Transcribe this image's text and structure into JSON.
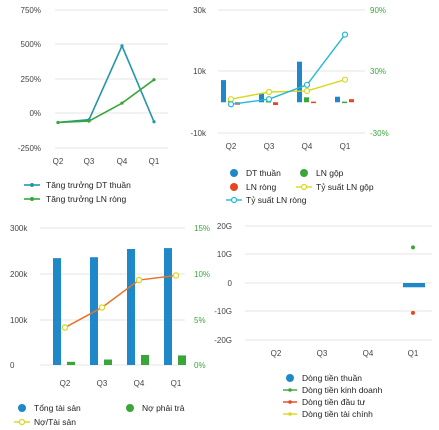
{
  "colors": {
    "blue": "#1e88c8",
    "teal": "#2596a8",
    "green": "#3aa63a",
    "red": "#e8451e",
    "yellow": "#d8d820",
    "orange": "#e8732a",
    "cyan": "#22b8d8",
    "grid": "#e6e6e6",
    "tick": "#444444"
  },
  "chart_data": [
    {
      "id": "c1",
      "type": "line",
      "categories": [
        "Q2",
        "Q3",
        "Q4",
        "Q1"
      ],
      "ylim": [
        -250,
        750
      ],
      "yticks": [
        "750%",
        "500%",
        "250%",
        "0%",
        "-250%"
      ],
      "series": [
        {
          "name": "Tăng trưởng DT thuần",
          "color": "teal",
          "values": [
            -65,
            -45,
            490,
            -60
          ]
        },
        {
          "name": "Tăng trưởng LN ròng",
          "color": "green",
          "values": [
            -65,
            -55,
            75,
            245
          ]
        }
      ]
    },
    {
      "id": "c2",
      "type": "bar",
      "categories": [
        "Q2",
        "Q3",
        "Q4",
        "Q1"
      ],
      "ylim": [
        -10000,
        30000
      ],
      "yticks": [
        "30k",
        "10k",
        "-10k"
      ],
      "y2lim": [
        -30,
        90
      ],
      "y2ticks": [
        "90%",
        "30%",
        "-30%"
      ],
      "series": [
        {
          "name": "DT thuần",
          "color": "blue",
          "axis": "left",
          "values": [
            7200,
            2800,
            13200,
            1800
          ]
        },
        {
          "name": "LN gộp",
          "color": "green",
          "axis": "left",
          "values": [
            500,
            400,
            1600,
            200
          ]
        },
        {
          "name": "LN ròng",
          "color": "red",
          "axis": "left",
          "values": [
            -800,
            -900,
            200,
            1000
          ]
        },
        {
          "name": "Tỷ suất LN gộp",
          "color": "yellow",
          "axis": "right",
          "values": [
            3,
            10,
            11,
            22
          ]
        },
        {
          "name": "Tỷ suất LN ròng",
          "color": "cyan",
          "axis": "right",
          "values": [
            -2,
            3,
            17,
            66
          ]
        }
      ]
    },
    {
      "id": "c3",
      "type": "bar",
      "categories": [
        "Q2",
        "Q3",
        "Q4",
        "Q1"
      ],
      "ylim": [
        0,
        300000
      ],
      "yticks": [
        "300k",
        "200k",
        "100k",
        "0"
      ],
      "y2lim": [
        0,
        15
      ],
      "y2ticks": [
        "15%",
        "10%",
        "5%",
        "0%"
      ],
      "series": [
        {
          "name": "Tổng tài sản",
          "color": "blue",
          "axis": "left",
          "values": [
            234000,
            236000,
            254000,
            256000
          ]
        },
        {
          "name": "Nợ phải trả",
          "color": "green",
          "axis": "left",
          "values": [
            7000,
            12000,
            22000,
            21000
          ]
        },
        {
          "name": "Nợ/Tài sản",
          "color": "orange",
          "axis": "right",
          "values": [
            4.1,
            6.3,
            9.3,
            9.8
          ]
        }
      ]
    },
    {
      "id": "c4",
      "type": "bar",
      "categories": [
        "Q2",
        "Q3",
        "Q4",
        "Q1"
      ],
      "ylim": [
        -20,
        20
      ],
      "yticks": [
        "20G",
        "10G",
        "0",
        "-10G",
        "-20G"
      ],
      "series": [
        {
          "name": "Dòng tiền thuần",
          "color": "blue",
          "values": [
            null,
            null,
            null,
            -1.5
          ]
        },
        {
          "name": "Dòng tiền kinh doanh",
          "color": "green",
          "values": [
            null,
            null,
            null,
            12.5
          ]
        },
        {
          "name": "Dòng tiền đầu tư",
          "color": "red",
          "values": [
            null,
            null,
            null,
            -10.5
          ]
        },
        {
          "name": "Dòng tiền tài chính",
          "color": "yellow",
          "values": [
            null,
            null,
            null,
            null
          ]
        }
      ]
    }
  ]
}
